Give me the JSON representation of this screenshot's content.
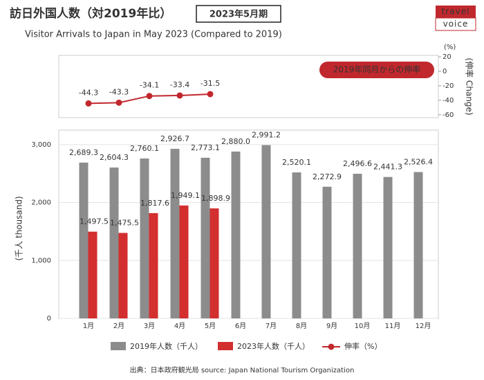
{
  "title": "訪日外国人数（対2019年比）",
  "period": "2023年5月期",
  "subtitle": "Visitor Arrivals to Japan in May 2023 (Compared to 2019)",
  "logo": [
    "travel",
    "voice"
  ],
  "source": "出典：日本政府観光局  source: Japan National Tourism Organization",
  "chart_data": [
    {
      "type": "line",
      "annotation": "2019年同月からの伸率",
      "y2_unit": "(%)",
      "y2_label": "(伸率 Change)",
      "y2lim": [
        -64,
        22
      ],
      "y2ticks": [
        20,
        0,
        -20,
        -40,
        -60
      ],
      "series": [
        {
          "name": "伸率（%）",
          "color": "#c0282d",
          "axis": "y2",
          "values": [
            -44.3,
            -43.3,
            -34.1,
            -33.4,
            -31.5
          ]
        }
      ]
    },
    {
      "type": "bar",
      "ylabel": "(千人 thousand)",
      "categories": [
        "1月",
        "2月",
        "3月",
        "4月",
        "5月",
        "6月",
        "7月",
        "8月",
        "9月",
        "10月",
        "11月",
        "12月"
      ],
      "ylim": [
        0,
        3250
      ],
      "yticks": [
        0,
        {
          "value": 1000,
          "label": "1,000"
        },
        {
          "value": 2000,
          "label": "2,000"
        },
        {
          "value": 3000,
          "label": "3,000"
        }
      ],
      "grid": true,
      "series": [
        {
          "name": "2019年人数（千人）",
          "color": "#8c8c8c",
          "values": [
            2689.3,
            2604.3,
            2760.1,
            2926.7,
            2773.1,
            2880.0,
            2991.2,
            2520.1,
            2272.9,
            2496.6,
            2441.3,
            2526.4
          ],
          "value_labels": [
            "2,689.3",
            "2,604.3",
            "2,760.1",
            "2,926.7",
            "2,773.1",
            "2,880.0",
            "2,991.2",
            "2,520.1",
            "2,272.9",
            "2,496.6",
            "2,441.3",
            "2,526.4"
          ]
        },
        {
          "name": "2023年人数（千人）",
          "color": "#d32f2f",
          "values": [
            1497.5,
            1475.5,
            1817.6,
            1949.1,
            1898.9,
            null,
            null,
            null,
            null,
            null,
            null,
            null
          ],
          "value_labels": [
            "1,497.5",
            "1,475.5",
            "1,817.6",
            "1,949.1",
            "1,898.9",
            null,
            null,
            null,
            null,
            null,
            null,
            null
          ]
        }
      ]
    }
  ]
}
